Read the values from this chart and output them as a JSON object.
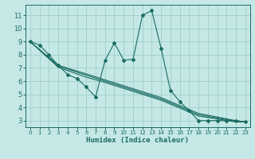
{
  "bg_color": "#c5e8e6",
  "grid_color": "#9ececa",
  "line_color": "#1a6b64",
  "xlabel": "Humidex (Indice chaleur)",
  "xlim": [
    -0.5,
    23.5
  ],
  "ylim": [
    2.5,
    11.8
  ],
  "yticks": [
    3,
    4,
    5,
    6,
    7,
    8,
    9,
    10,
    11
  ],
  "xticks": [
    0,
    1,
    2,
    3,
    4,
    5,
    6,
    7,
    8,
    9,
    10,
    11,
    12,
    13,
    14,
    15,
    16,
    17,
    18,
    19,
    20,
    21,
    22,
    23
  ],
  "series_jagged_x": [
    0,
    1,
    2,
    3,
    4,
    5,
    6,
    7,
    8,
    9,
    10,
    11,
    12,
    13,
    14,
    15,
    16,
    17,
    18,
    19,
    20,
    21,
    22,
    23
  ],
  "series_jagged_y": [
    9.0,
    8.75,
    8.0,
    7.2,
    6.5,
    6.2,
    5.55,
    4.8,
    7.55,
    8.9,
    7.6,
    7.65,
    11.0,
    11.35,
    8.5,
    5.3,
    4.45,
    3.75,
    3.0,
    3.0,
    3.0,
    3.0,
    3.0,
    2.9
  ],
  "series_line1_x": [
    0,
    3,
    6,
    8,
    14,
    18,
    22,
    23
  ],
  "series_line1_y": [
    9.0,
    7.2,
    6.55,
    6.1,
    4.75,
    3.55,
    3.0,
    2.9
  ],
  "series_line2_x": [
    0,
    3,
    6,
    8,
    14,
    18,
    22,
    23
  ],
  "series_line2_y": [
    9.0,
    7.15,
    6.45,
    6.0,
    4.65,
    3.45,
    2.95,
    2.9
  ],
  "series_line3_x": [
    0,
    3,
    6,
    8,
    14,
    18,
    22,
    23
  ],
  "series_line3_y": [
    9.0,
    7.05,
    6.3,
    5.9,
    4.55,
    3.35,
    2.9,
    2.9
  ]
}
